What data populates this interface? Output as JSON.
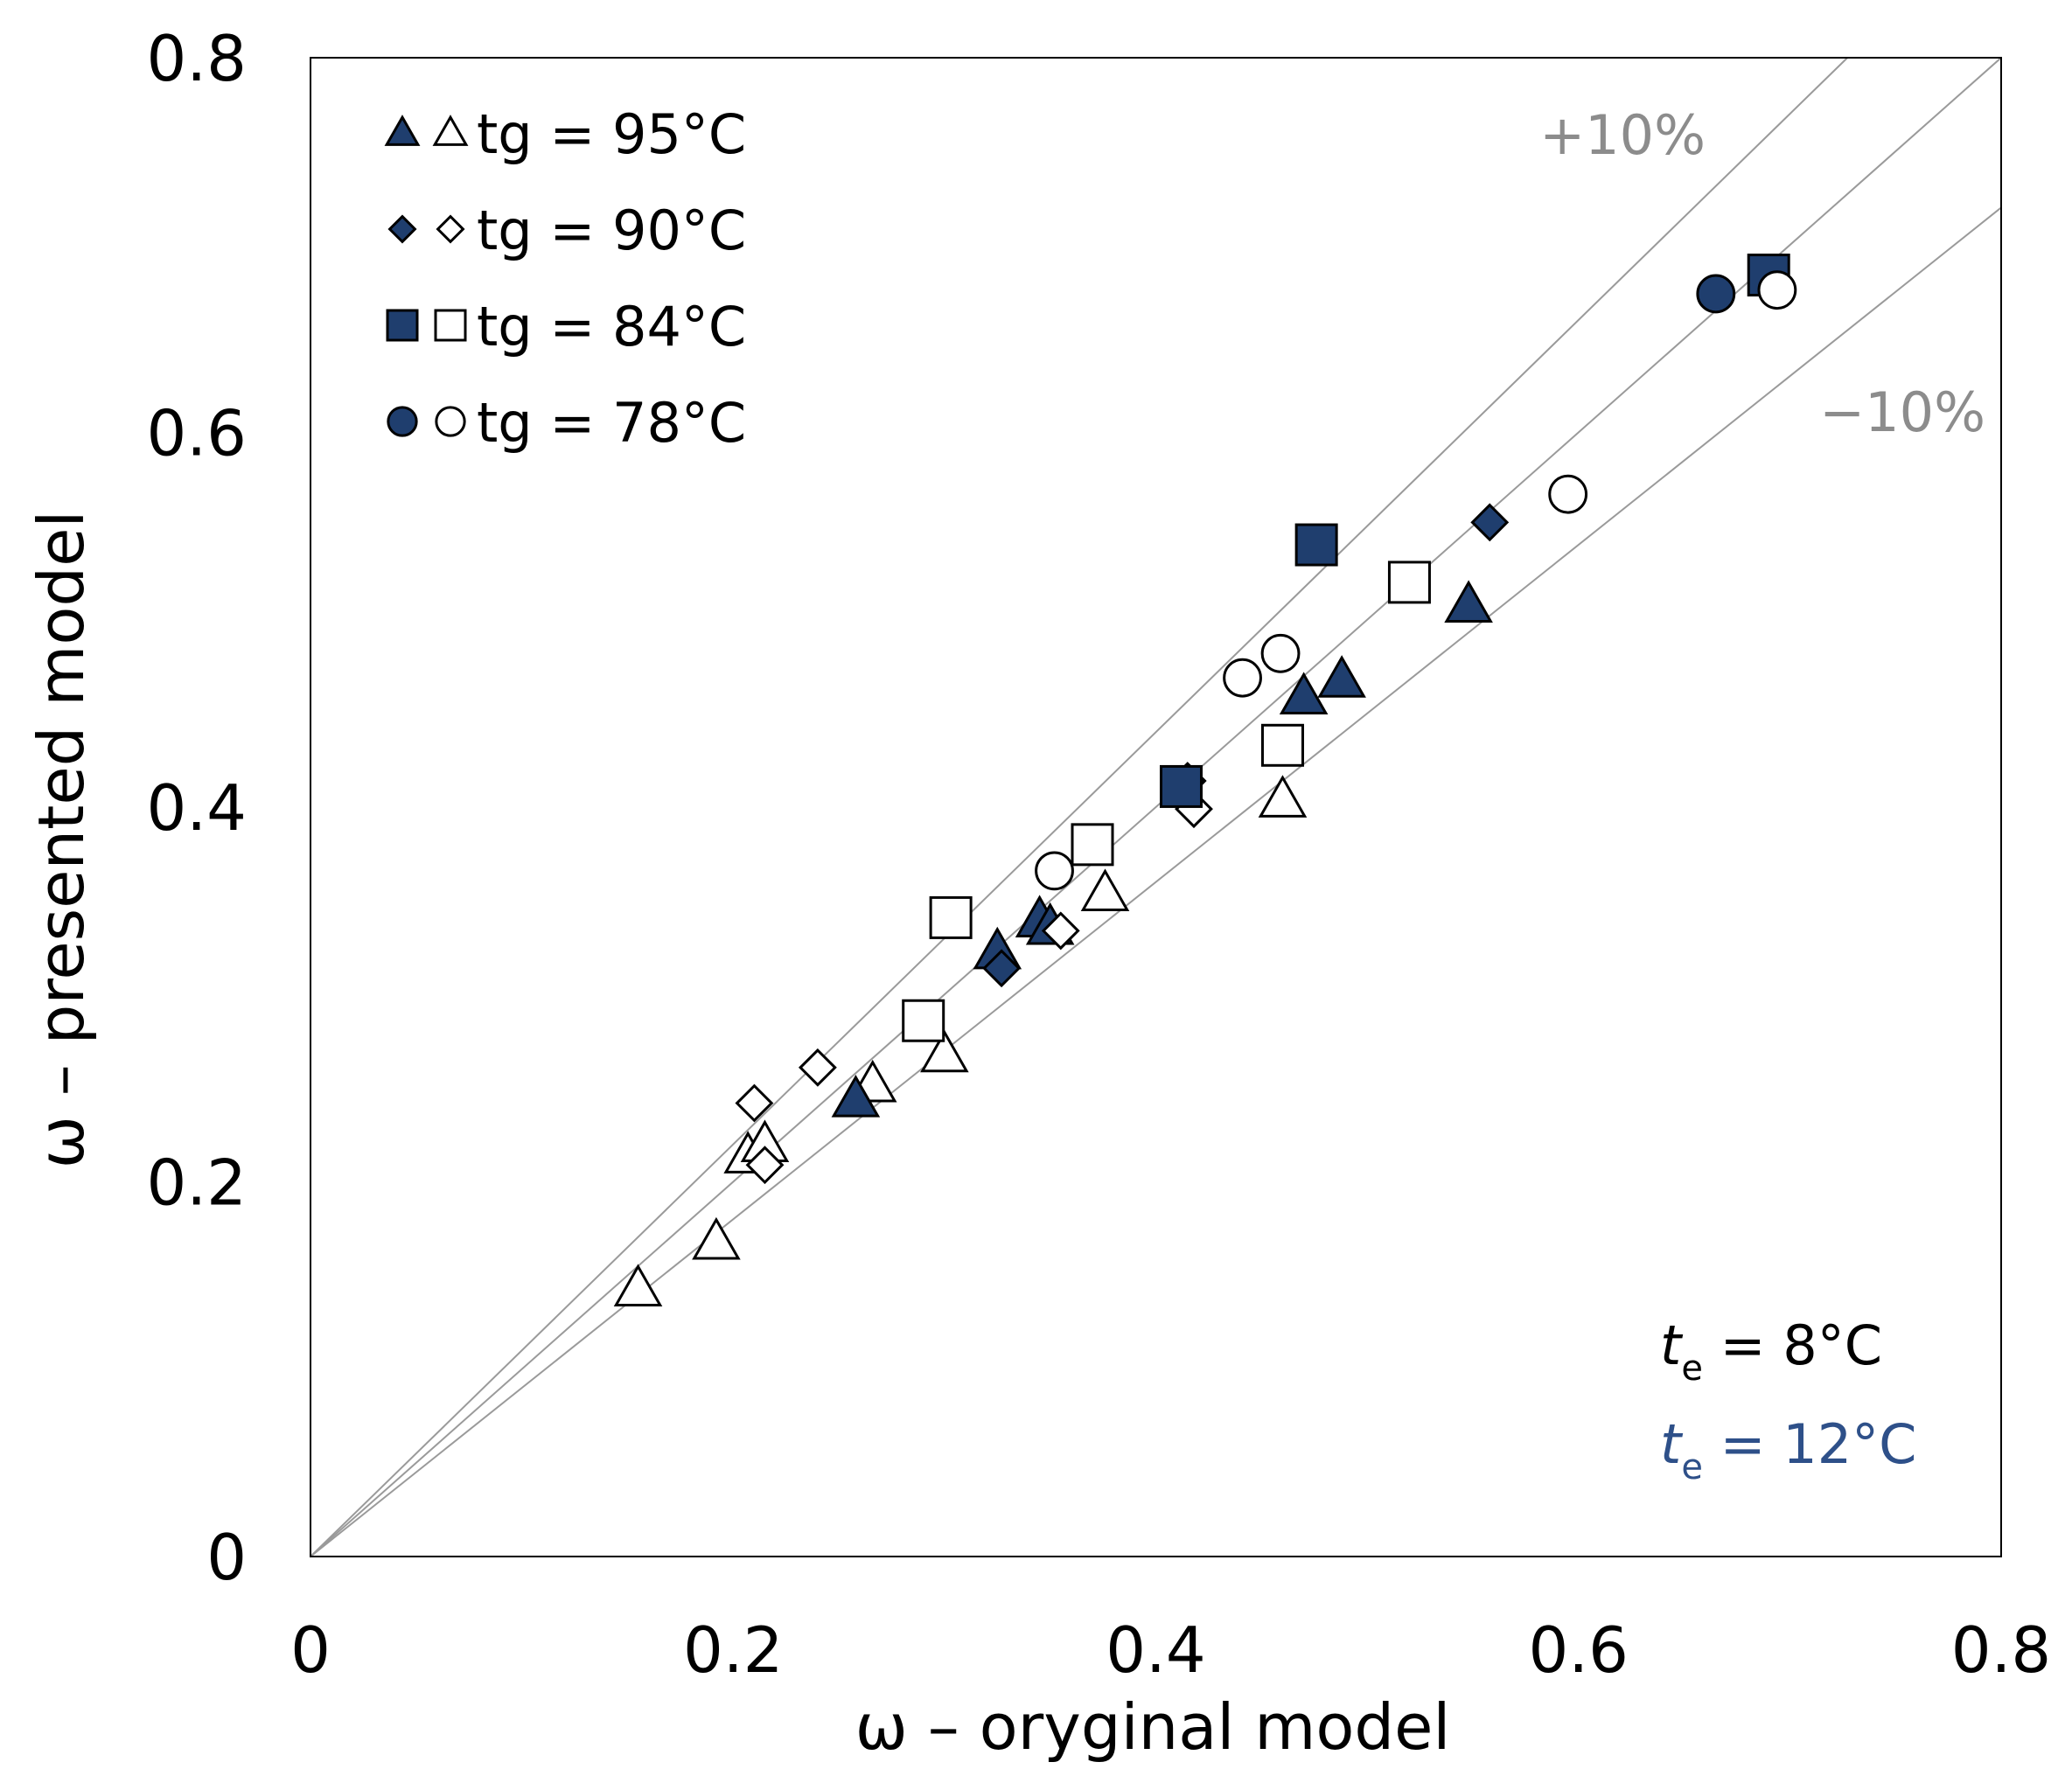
{
  "chart_data": {
    "type": "scatter",
    "xlabel": "ω – oryginal model",
    "ylabel": "ω – presented model",
    "xlim": [
      0,
      0.8
    ],
    "ylim": [
      0,
      0.8
    ],
    "x_ticks": [
      "0",
      "0.2",
      "0.4",
      "0.6",
      "0.8"
    ],
    "y_ticks": [
      "0",
      "0.2",
      "0.4",
      "0.6",
      "0.8"
    ],
    "grid": false,
    "reference_lines": [
      {
        "label": "+10%",
        "slope": 1.1
      },
      {
        "label": "",
        "slope": 1.0
      },
      {
        "label": "−10%",
        "slope": 0.9
      }
    ],
    "conditions": [
      {
        "var": "t",
        "sub": "e",
        "text": " = 8°C",
        "color": "#000000",
        "fill": "open"
      },
      {
        "var": "t",
        "sub": "e",
        "text": " = 12°C",
        "color": "#2e5089",
        "fill": "filled"
      }
    ],
    "legend": [
      {
        "marker": "triangle",
        "label": "tg = 95°C"
      },
      {
        "marker": "diamond",
        "label": "tg = 90°C"
      },
      {
        "marker": "square",
        "label": "tg = 84°C"
      },
      {
        "marker": "circle",
        "label": "tg = 78°C"
      }
    ],
    "series": [
      {
        "name": "tg = 95°C, te = 8°C",
        "marker": "triangle",
        "filled": false,
        "points": [
          [
            0.155,
            0.143
          ],
          [
            0.192,
            0.168
          ],
          [
            0.207,
            0.214
          ],
          [
            0.215,
            0.22
          ],
          [
            0.266,
            0.252
          ],
          [
            0.3,
            0.268
          ],
          [
            0.376,
            0.354
          ],
          [
            0.46,
            0.404
          ]
        ]
      },
      {
        "name": "tg = 95°C, te = 12°C",
        "marker": "triangle",
        "filled": true,
        "points": [
          [
            0.258,
            0.244
          ],
          [
            0.325,
            0.323
          ],
          [
            0.345,
            0.34
          ],
          [
            0.35,
            0.336
          ],
          [
            0.47,
            0.459
          ],
          [
            0.488,
            0.468
          ],
          [
            0.548,
            0.508
          ]
        ]
      },
      {
        "name": "tg = 90°C, te = 8°C",
        "marker": "diamond",
        "filled": false,
        "points": [
          [
            0.21,
            0.242
          ],
          [
            0.24,
            0.261
          ],
          [
            0.215,
            0.209
          ],
          [
            0.355,
            0.334
          ],
          [
            0.418,
            0.399
          ]
        ]
      },
      {
        "name": "tg = 90°C, te = 12°C",
        "marker": "diamond",
        "filled": true,
        "points": [
          [
            0.327,
            0.314
          ],
          [
            0.415,
            0.414
          ],
          [
            0.558,
            0.552
          ]
        ]
      },
      {
        "name": "tg = 84°C, te = 8°C",
        "marker": "square",
        "filled": false,
        "points": [
          [
            0.29,
            0.286
          ],
          [
            0.303,
            0.341
          ],
          [
            0.37,
            0.38
          ],
          [
            0.46,
            0.433
          ],
          [
            0.52,
            0.52
          ]
        ]
      },
      {
        "name": "tg = 84°C, te = 12°C",
        "marker": "square",
        "filled": true,
        "points": [
          [
            0.412,
            0.411
          ],
          [
            0.476,
            0.54
          ],
          [
            0.69,
            0.684
          ]
        ]
      },
      {
        "name": "tg = 78°C, te = 8°C",
        "marker": "circle",
        "filled": false,
        "points": [
          [
            0.352,
            0.366
          ],
          [
            0.441,
            0.469
          ],
          [
            0.459,
            0.482
          ],
          [
            0.595,
            0.567
          ],
          [
            0.694,
            0.676
          ]
        ]
      },
      {
        "name": "tg = 78°C, te = 12°C",
        "marker": "circle",
        "filled": true,
        "points": [
          [
            0.665,
            0.674
          ]
        ]
      }
    ]
  }
}
